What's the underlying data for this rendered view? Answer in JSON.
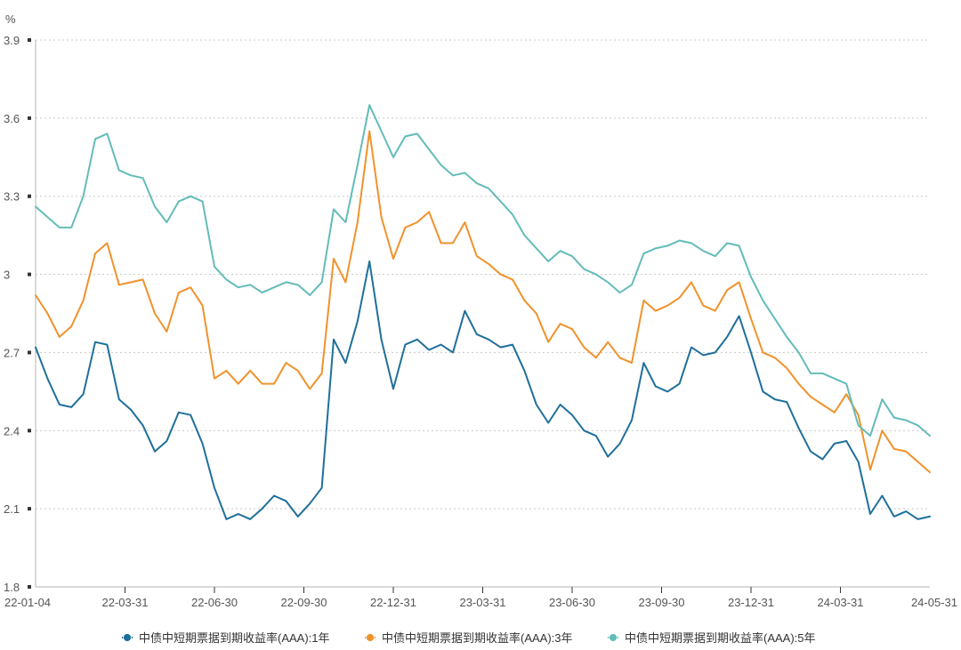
{
  "chart_data": {
    "type": "line",
    "title": "",
    "unit": "%",
    "xlabel": "",
    "ylabel": "%",
    "ylim": [
      1.8,
      3.9
    ],
    "yticks": [
      "3.9",
      "3.6",
      "3.3",
      "3",
      "2.7",
      "2.4",
      "2.1",
      "1.8"
    ],
    "xticks": [
      "22-01-04",
      "22-03-31",
      "22-06-30",
      "22-09-30",
      "22-12-31",
      "23-03-31",
      "23-06-30",
      "23-09-30",
      "23-12-31",
      "24-03-31",
      "24-05-31"
    ],
    "grid": true,
    "legend_position": "bottom",
    "series": [
      {
        "name": "中债中短期票据到期收益率(AAA):1年",
        "color": "#1f6f9b",
        "values": [
          2.72,
          2.6,
          2.5,
          2.49,
          2.54,
          2.74,
          2.73,
          2.52,
          2.48,
          2.42,
          2.32,
          2.36,
          2.47,
          2.46,
          2.35,
          2.18,
          2.06,
          2.08,
          2.06,
          2.1,
          2.15,
          2.13,
          2.07,
          2.12,
          2.18,
          2.75,
          2.66,
          2.82,
          3.05,
          2.75,
          2.56,
          2.73,
          2.75,
          2.71,
          2.73,
          2.7,
          2.86,
          2.77,
          2.75,
          2.72,
          2.73,
          2.63,
          2.5,
          2.43,
          2.5,
          2.46,
          2.4,
          2.38,
          2.3,
          2.35,
          2.44,
          2.66,
          2.57,
          2.55,
          2.58,
          2.72,
          2.69,
          2.7,
          2.76,
          2.84,
          2.7,
          2.55,
          2.52,
          2.51,
          2.41,
          2.32,
          2.29,
          2.35,
          2.36,
          2.28,
          2.08,
          2.15,
          2.07,
          2.09,
          2.06,
          2.07
        ]
      },
      {
        "name": "中债中短期票据到期收益率(AAA):3年",
        "color": "#f0922b",
        "values": [
          2.92,
          2.85,
          2.76,
          2.8,
          2.9,
          3.08,
          3.12,
          2.96,
          2.97,
          2.98,
          2.85,
          2.78,
          2.93,
          2.95,
          2.88,
          2.6,
          2.63,
          2.58,
          2.63,
          2.58,
          2.58,
          2.66,
          2.63,
          2.56,
          2.62,
          3.06,
          2.97,
          3.2,
          3.55,
          3.22,
          3.06,
          3.18,
          3.2,
          3.24,
          3.12,
          3.12,
          3.2,
          3.07,
          3.04,
          3.0,
          2.98,
          2.9,
          2.85,
          2.74,
          2.81,
          2.79,
          2.72,
          2.68,
          2.74,
          2.68,
          2.66,
          2.9,
          2.86,
          2.88,
          2.91,
          2.97,
          2.88,
          2.86,
          2.94,
          2.97,
          2.83,
          2.7,
          2.68,
          2.64,
          2.58,
          2.53,
          2.5,
          2.47,
          2.54,
          2.46,
          2.25,
          2.4,
          2.33,
          2.32,
          2.28,
          2.24
        ]
      },
      {
        "name": "中债中短期票据到期收益率(AAA):5年",
        "color": "#63bcb8",
        "values": [
          3.26,
          3.22,
          3.18,
          3.18,
          3.3,
          3.52,
          3.54,
          3.4,
          3.38,
          3.37,
          3.26,
          3.2,
          3.28,
          3.3,
          3.28,
          3.03,
          2.98,
          2.95,
          2.96,
          2.93,
          2.95,
          2.97,
          2.96,
          2.92,
          2.97,
          3.25,
          3.2,
          3.42,
          3.65,
          3.55,
          3.45,
          3.53,
          3.54,
          3.48,
          3.42,
          3.38,
          3.39,
          3.35,
          3.33,
          3.28,
          3.23,
          3.15,
          3.1,
          3.05,
          3.09,
          3.07,
          3.02,
          3.0,
          2.97,
          2.93,
          2.96,
          3.08,
          3.1,
          3.11,
          3.13,
          3.12,
          3.09,
          3.07,
          3.12,
          3.11,
          2.99,
          2.9,
          2.83,
          2.76,
          2.7,
          2.62,
          2.62,
          2.6,
          2.58,
          2.42,
          2.38,
          2.52,
          2.45,
          2.44,
          2.42,
          2.38
        ]
      }
    ]
  }
}
